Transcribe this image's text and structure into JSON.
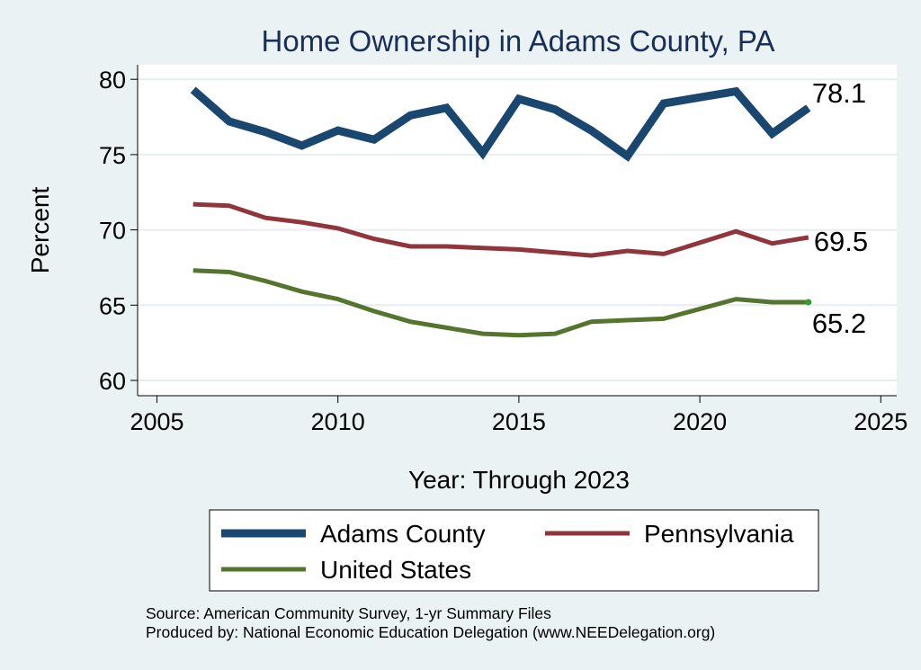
{
  "chart_data": {
    "type": "line",
    "title": "Home Ownership in Adams County, PA",
    "xlabel": "Year: Through 2023",
    "ylabel": "Percent",
    "xlim": [
      2005,
      2025
    ],
    "ylim": [
      60,
      80
    ],
    "xticks": [
      2005,
      2010,
      2015,
      2020,
      2025
    ],
    "yticks": [
      60,
      65,
      70,
      75,
      80
    ],
    "grid": true,
    "legend_position": "bottom",
    "series": [
      {
        "name": "Adams County",
        "color": "#1a476f",
        "end_label": "78.1",
        "x": [
          2006,
          2007,
          2008,
          2009,
          2010,
          2011,
          2012,
          2013,
          2014,
          2015,
          2016,
          2017,
          2018,
          2019,
          2021,
          2022,
          2023
        ],
        "y": [
          79.3,
          77.2,
          76.5,
          75.6,
          76.6,
          76.0,
          77.6,
          78.1,
          75.1,
          78.7,
          78.0,
          76.6,
          74.9,
          78.4,
          79.2,
          76.4,
          78.1
        ]
      },
      {
        "name": "Pennsylvania",
        "color": "#90353b",
        "end_label": "69.5",
        "x": [
          2006,
          2007,
          2008,
          2009,
          2010,
          2011,
          2012,
          2013,
          2014,
          2015,
          2016,
          2017,
          2018,
          2019,
          2021,
          2022,
          2023
        ],
        "y": [
          71.7,
          71.6,
          70.8,
          70.5,
          70.1,
          69.4,
          68.9,
          68.9,
          68.8,
          68.7,
          68.5,
          68.3,
          68.6,
          68.4,
          69.9,
          69.1,
          69.5
        ]
      },
      {
        "name": "United States",
        "color": "#55752f",
        "end_label": "65.2",
        "x": [
          2006,
          2007,
          2008,
          2009,
          2010,
          2011,
          2012,
          2013,
          2014,
          2015,
          2016,
          2017,
          2018,
          2019,
          2021,
          2022,
          2023
        ],
        "y": [
          67.3,
          67.2,
          66.6,
          65.9,
          65.4,
          64.6,
          63.9,
          63.5,
          63.1,
          63.0,
          63.1,
          63.9,
          64.0,
          64.1,
          65.4,
          65.2,
          65.2
        ]
      }
    ]
  },
  "notes": {
    "source": "Source: American Community Survey, 1-yr Summary Files",
    "producer": "Produced by: National Economic Education Delegation (www.NEEDelegation.org)"
  }
}
